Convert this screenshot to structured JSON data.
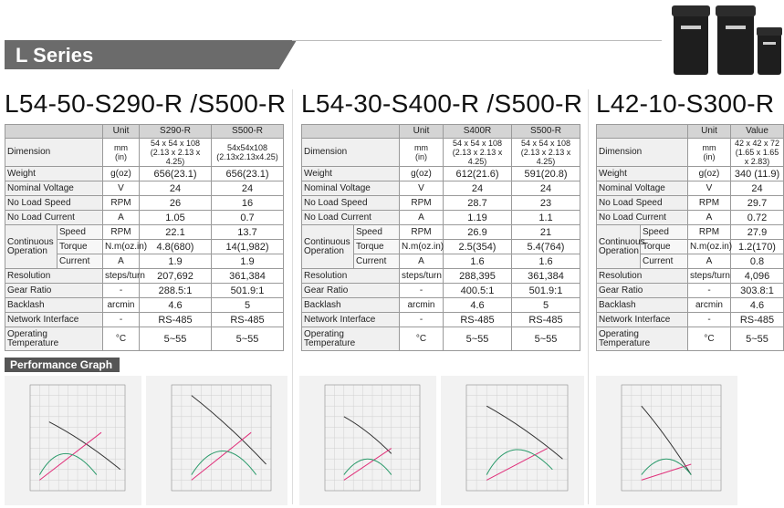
{
  "header": {
    "title": "L Series"
  },
  "performance_title": "Performance Graph",
  "tables": [
    {
      "title": "L54-50-S290-R /S500-R",
      "columns": [
        "Unit",
        "S290-R",
        "S500-R"
      ],
      "rows": [
        {
          "label": "Dimension",
          "unit": [
            "mm",
            "(in)"
          ],
          "values": [
            [
              "54 x 54 x 108",
              "(2.13 x 2.13 x 4.25)"
            ],
            [
              "54x54x108",
              "(2.13x2.13x4.25)"
            ]
          ]
        },
        {
          "label": "Weight",
          "unit": "g(oz)",
          "values": [
            "656(23.1)",
            "656(23.1)"
          ]
        },
        {
          "label": "Nominal Voltage",
          "unit": "V",
          "values": [
            "24",
            "24"
          ]
        },
        {
          "label": "No Load Speed",
          "unit": "RPM",
          "values": [
            "26",
            "16"
          ]
        },
        {
          "label": "No Load Current",
          "unit": "A",
          "values": [
            "1.05",
            "0.7"
          ]
        },
        {
          "label": "Continuous Operation",
          "subrows": [
            {
              "label": "Speed",
              "unit": "RPM",
              "values": [
                "22.1",
                "13.7"
              ]
            },
            {
              "label": "Torque",
              "unit": "N.m(oz.in)",
              "values": [
                "4.8(680)",
                "14(1,982)"
              ]
            },
            {
              "label": "Current",
              "unit": "A",
              "values": [
                "1.9",
                "1.9"
              ]
            }
          ]
        },
        {
          "label": "Resolution",
          "unit": "steps/turn",
          "values": [
            "207,692",
            "361,384"
          ]
        },
        {
          "label": "Gear Ratio",
          "unit": "-",
          "values": [
            "288.5:1",
            "501.9:1"
          ]
        },
        {
          "label": "Backlash",
          "unit": "arcmin",
          "values": [
            "4.6",
            "5"
          ]
        },
        {
          "label": "Network Interface",
          "unit": "-",
          "values": [
            "RS-485",
            "RS-485"
          ]
        },
        {
          "label": "Operating Temperature",
          "unit": "°C",
          "values": [
            "5~55",
            "5~55"
          ]
        }
      ]
    },
    {
      "title": "L54-30-S400-R /S500-R",
      "columns": [
        "Unit",
        "S400R",
        "S500-R"
      ],
      "rows": [
        {
          "label": "Dimension",
          "unit": [
            "mm",
            "(in)"
          ],
          "values": [
            [
              "54 x 54 x 108",
              "(2.13 x 2.13 x 4.25)"
            ],
            [
              "54 x 54 x 108",
              "(2.13 x 2.13 x 4.25)"
            ]
          ]
        },
        {
          "label": "Weight",
          "unit": "g(oz)",
          "values": [
            "612(21.6)",
            "591(20.8)"
          ]
        },
        {
          "label": "Nominal Voltage",
          "unit": "V",
          "values": [
            "24",
            "24"
          ]
        },
        {
          "label": "No Load Speed",
          "unit": "RPM",
          "values": [
            "28.7",
            "23"
          ]
        },
        {
          "label": "No Load Current",
          "unit": "A",
          "values": [
            "1.19",
            "1.1"
          ]
        },
        {
          "label": "Continuous Operation",
          "subrows": [
            {
              "label": "Speed",
              "unit": "RPM",
              "values": [
                "26.9",
                "21"
              ]
            },
            {
              "label": "Torque",
              "unit": "N.m(oz.in)",
              "values": [
                "2.5(354)",
                "5.4(764)"
              ]
            },
            {
              "label": "Current",
              "unit": "A",
              "values": [
                "1.6",
                "1.6"
              ]
            }
          ]
        },
        {
          "label": "Resolution",
          "unit": "steps/turn",
          "values": [
            "288,395",
            "361,384"
          ]
        },
        {
          "label": "Gear Ratio",
          "unit": "-",
          "values": [
            "400.5:1",
            "501.9:1"
          ]
        },
        {
          "label": "Backlash",
          "unit": "arcmin",
          "values": [
            "4.6",
            "5"
          ]
        },
        {
          "label": "Network Interface",
          "unit": "-",
          "values": [
            "RS-485",
            "RS-485"
          ]
        },
        {
          "label": "Operating Temperature",
          "unit": "°C",
          "values": [
            "5~55",
            "5~55"
          ]
        }
      ]
    },
    {
      "title": "L42-10-S300-R",
      "columns": [
        "Unit",
        "Value"
      ],
      "rows": [
        {
          "label": "Dimension",
          "unit": [
            "mm",
            "(in)"
          ],
          "values": [
            [
              "42 x 42 x 72",
              "(1.65 x 1.65 x 2.83)"
            ]
          ]
        },
        {
          "label": "Weight",
          "unit": "g(oz)",
          "values": [
            "340 (11.9)"
          ]
        },
        {
          "label": "Nominal Voltage",
          "unit": "V",
          "values": [
            "24"
          ]
        },
        {
          "label": "No Load Speed",
          "unit": "RPM",
          "values": [
            "29.7"
          ]
        },
        {
          "label": "No Load Current",
          "unit": "A",
          "values": [
            "0.72"
          ]
        },
        {
          "label": "Continuous Operation",
          "subrows": [
            {
              "label": "Speed",
              "unit": "RPM",
              "values": [
                "27.9"
              ]
            },
            {
              "label": "Torque",
              "unit": "N.m(oz.in)",
              "values": [
                "1.2(170)"
              ]
            },
            {
              "label": "Current",
              "unit": "A",
              "values": [
                "0.8"
              ]
            }
          ]
        },
        {
          "label": "Resolution",
          "unit": "steps/turn",
          "values": [
            "4,096"
          ]
        },
        {
          "label": "Gear Ratio",
          "unit": "-",
          "values": [
            "303.8:1"
          ]
        },
        {
          "label": "Backlash",
          "unit": "arcmin",
          "values": [
            "4.6"
          ]
        },
        {
          "label": "Network Interface",
          "unit": "-",
          "values": [
            "RS-485"
          ]
        },
        {
          "label": "Operating Temperature",
          "unit": "°C",
          "values": [
            "5~55"
          ]
        }
      ]
    }
  ]
}
